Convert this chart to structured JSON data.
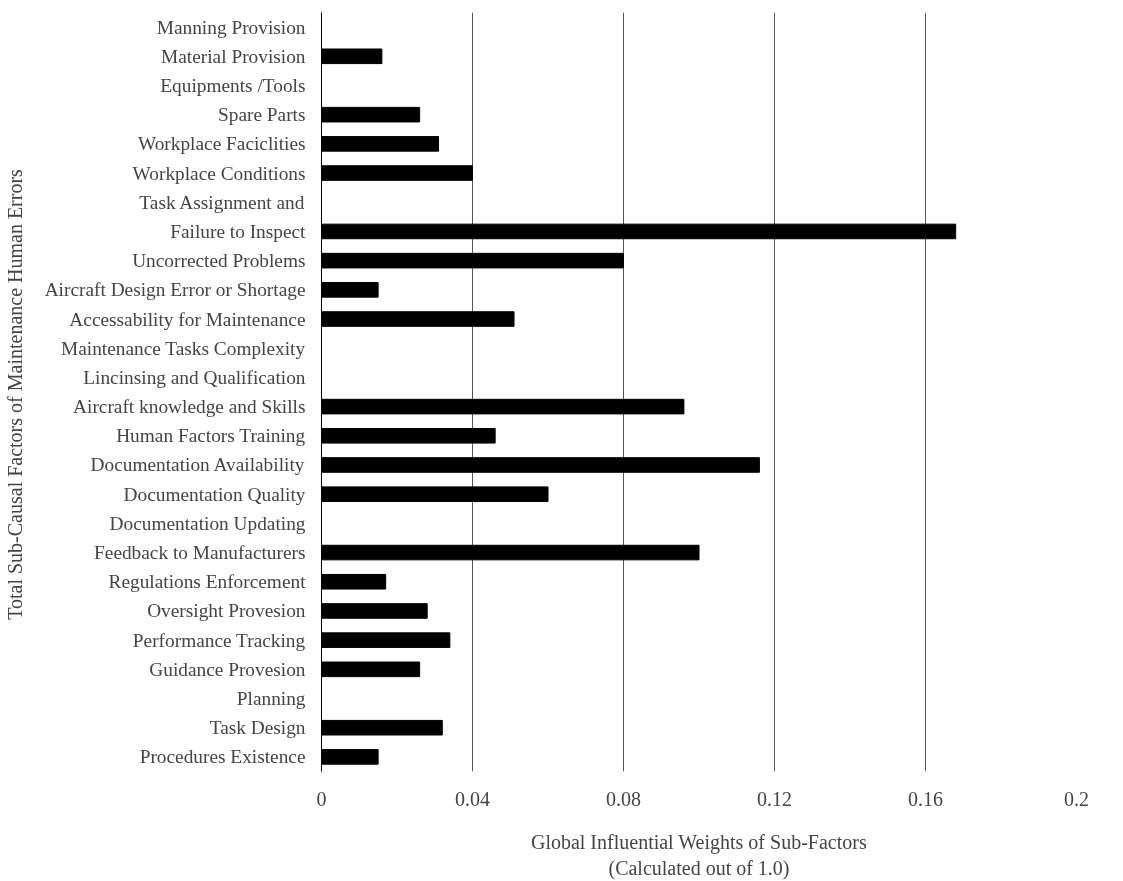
{
  "chart_data": {
    "type": "bar",
    "orientation": "horizontal",
    "xlabel": "Global Influential Weights of Sub-Factors\n(Calculated out of 1.0)",
    "ylabel": "Total Sub-Causal Factors of  Maintenance Human Errors",
    "categories": [
      "Manning Provision",
      "Material Provision",
      "Equipments /Tools",
      "Spare Parts",
      "Workplace Faciclities",
      "Workplace Conditions",
      "Task Assignment and",
      "Failure to Inspect",
      "Uncorrected Problems",
      "Aircraft Design Error or Shortage",
      "Accessability for Maintenance",
      "Maintenance Tasks Complexity",
      "Lincinsing and Qualification",
      "Aircraft knowledge and Skills",
      "Human Factors Training",
      "Documentation Availability",
      "Documentation Quality",
      "Documentation Updating",
      "Feedback to Manufacturers",
      "Regulations Enforcement",
      "Oversight Provesion",
      "Performance Tracking",
      "Guidance Provesion",
      "Planning",
      "Task Design",
      "Procedures Existence"
    ],
    "values": [
      0,
      0.016,
      0,
      0.026,
      0.031,
      0.04,
      0,
      0.168,
      0.08,
      0.015,
      0.051,
      0,
      0,
      0.096,
      0.046,
      0.116,
      0.06,
      0,
      0.1,
      0.017,
      0.028,
      0.034,
      0.026,
      0,
      0.032,
      0.015
    ],
    "color": "#000000",
    "xlim": [
      0,
      0.2
    ],
    "xticks": [
      0,
      0.04,
      0.08,
      0.12,
      0.16,
      0.2
    ],
    "grid": "x"
  }
}
